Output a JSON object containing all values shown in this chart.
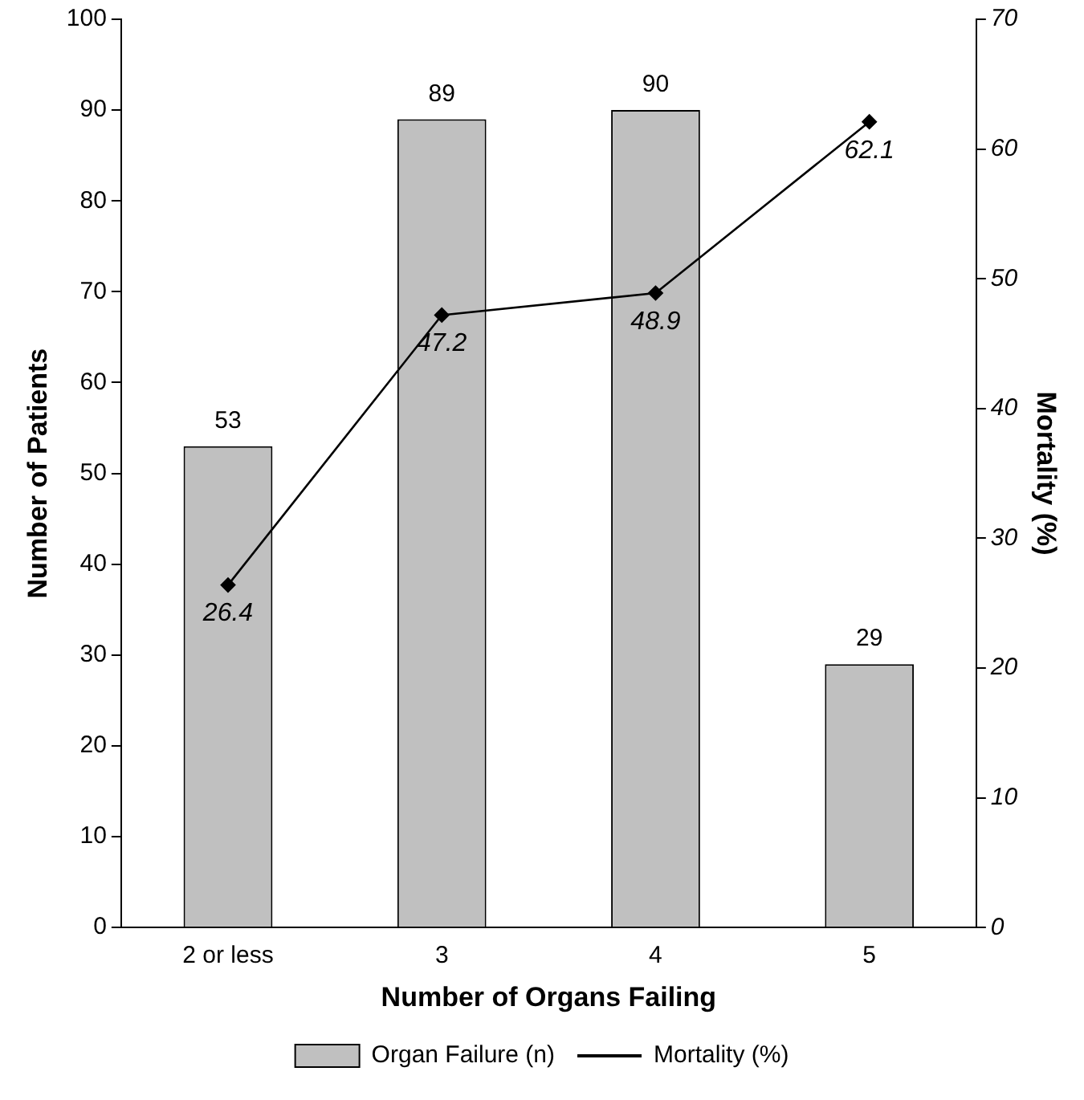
{
  "chart_data": {
    "type": "bar",
    "xlabel": "Number of Organs Failing",
    "ylabel": "Number of Patients",
    "y2label": "Mortality (%)",
    "categories": [
      "2 or less",
      "3",
      "4",
      "5"
    ],
    "series": [
      {
        "name": "Organ Failure (n)",
        "color": "#c0c0c0",
        "values": [
          53,
          89,
          90,
          29
        ]
      },
      {
        "name": "Mortality (%)",
        "type": "line",
        "axis": "y2",
        "color": "#000000",
        "values": [
          26.4,
          47.2,
          48.9,
          62.1
        ]
      }
    ],
    "ylim": [
      0,
      100
    ],
    "yticks": [
      0,
      10,
      20,
      30,
      40,
      50,
      60,
      70,
      80,
      90,
      100
    ],
    "y2lim": [
      0,
      70
    ],
    "y2ticks": [
      0,
      10,
      20,
      30,
      40,
      50,
      60,
      70
    ],
    "grid": false,
    "legend": "bottom",
    "marker": "diamond",
    "line_style": "solid",
    "data_labels": true
  }
}
